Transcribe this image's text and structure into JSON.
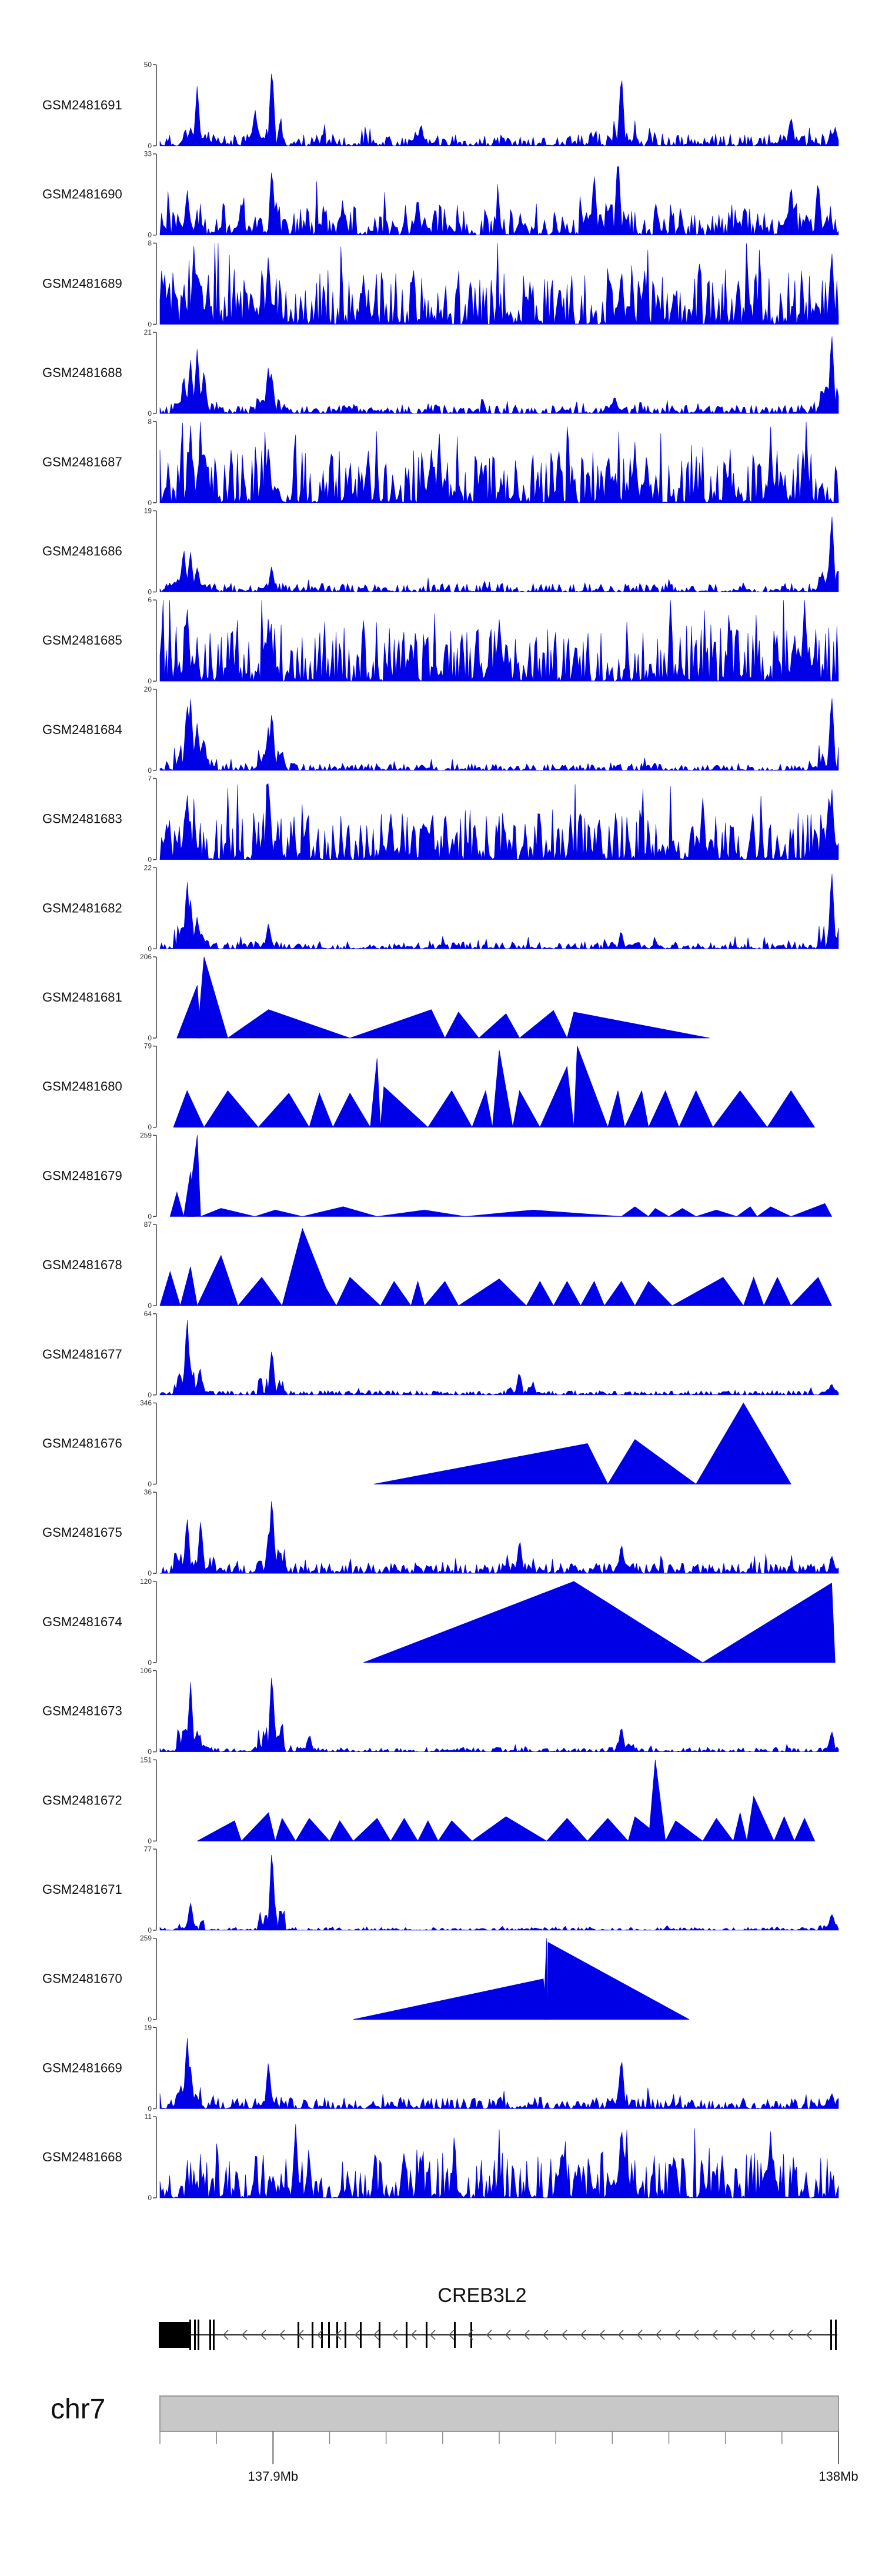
{
  "chart_data": {
    "type": "area",
    "title": "",
    "xlabel": "",
    "ylabel": "",
    "color": "#0000e6",
    "xlim": [
      137.88,
      138.0
    ],
    "tracks": [
      {
        "name": "GSM2481691",
        "ymax": "50",
        "kind": "dense",
        "seed": 11,
        "level": 0.08,
        "peaks": [
          [
            0.055,
            0.72
          ],
          [
            0.14,
            0.45
          ],
          [
            0.165,
            1.0
          ],
          [
            0.385,
            0.25
          ],
          [
            0.68,
            0.92
          ],
          [
            0.93,
            0.38
          ],
          [
            0.995,
            0.2
          ]
        ]
      },
      {
        "name": "GSM2481690",
        "ymax": "33",
        "kind": "dense",
        "seed": 23,
        "level": 0.22,
        "peaks": [
          [
            0.04,
            0.55
          ],
          [
            0.12,
            0.4
          ],
          [
            0.165,
            0.85
          ],
          [
            0.38,
            0.45
          ],
          [
            0.64,
            0.75
          ],
          [
            0.675,
            1.0
          ],
          [
            0.93,
            0.65
          ],
          [
            0.97,
            0.72
          ]
        ]
      },
      {
        "name": "GSM2481689",
        "ymax": "8",
        "kind": "dense",
        "seed": 37,
        "level": 0.38,
        "peaks": [
          [
            0.05,
            0.95
          ],
          [
            0.16,
            0.85
          ],
          [
            0.3,
            0.6
          ],
          [
            0.68,
            0.7
          ],
          [
            0.99,
            0.9
          ]
        ]
      },
      {
        "name": "GSM2481688",
        "ymax": "21",
        "kind": "dense",
        "seed": 41,
        "level": 0.06,
        "peaks": [
          [
            0.035,
            0.45
          ],
          [
            0.045,
            0.65
          ],
          [
            0.055,
            0.8
          ],
          [
            0.065,
            0.55
          ],
          [
            0.16,
            0.6
          ],
          [
            0.165,
            0.5
          ],
          [
            0.67,
            0.2
          ],
          [
            0.99,
            1.0
          ]
        ]
      },
      {
        "name": "GSM2481687",
        "ymax": "8",
        "kind": "dense",
        "seed": 53,
        "level": 0.36,
        "peaks": [
          [
            0.045,
            0.95
          ],
          [
            0.06,
            0.8
          ],
          [
            0.16,
            0.7
          ],
          [
            0.4,
            0.65
          ],
          [
            0.7,
            0.7
          ],
          [
            0.9,
            0.75
          ]
        ]
      },
      {
        "name": "GSM2481686",
        "ymax": "19",
        "kind": "dense",
        "seed": 61,
        "level": 0.06,
        "peaks": [
          [
            0.035,
            0.55
          ],
          [
            0.045,
            0.5
          ],
          [
            0.055,
            0.3
          ],
          [
            0.165,
            0.3
          ],
          [
            0.99,
            1.0
          ]
        ]
      },
      {
        "name": "GSM2481685",
        "ymax": "6",
        "kind": "dense",
        "seed": 71,
        "level": 0.38,
        "peaks": [
          [
            0.04,
            0.95
          ],
          [
            0.16,
            0.8
          ],
          [
            0.5,
            0.75
          ],
          [
            0.95,
            1.0
          ]
        ]
      },
      {
        "name": "GSM2481684",
        "ymax": "20",
        "kind": "dense",
        "seed": 83,
        "level": 0.05,
        "peaks": [
          [
            0.04,
            0.85
          ],
          [
            0.045,
            0.9
          ],
          [
            0.055,
            0.6
          ],
          [
            0.065,
            0.4
          ],
          [
            0.16,
            0.55
          ],
          [
            0.165,
            0.75
          ],
          [
            0.99,
            0.95
          ]
        ]
      },
      {
        "name": "GSM2481683",
        "ymax": "7",
        "kind": "dense",
        "seed": 97,
        "level": 0.32,
        "peaks": [
          [
            0.04,
            0.85
          ],
          [
            0.16,
            1.0
          ],
          [
            0.34,
            0.6
          ],
          [
            0.8,
            0.75
          ],
          [
            0.99,
            0.9
          ]
        ]
      },
      {
        "name": "GSM2481682",
        "ymax": "22",
        "kind": "dense",
        "seed": 101,
        "level": 0.05,
        "peaks": [
          [
            0.04,
            0.85
          ],
          [
            0.045,
            0.6
          ],
          [
            0.055,
            0.4
          ],
          [
            0.16,
            0.3
          ],
          [
            0.68,
            0.2
          ],
          [
            0.99,
            0.95
          ]
        ]
      },
      {
        "name": "GSM2481681",
        "ymax": "206",
        "kind": "triangles",
        "peaks": [
          [
            0.025,
            0.0,
            0.06,
            0.0
          ],
          [
            0.045,
            0.035,
            0.065,
            0.04
          ],
          [
            0.06,
            0.0,
            0.1,
            0.0
          ],
          [
            0.1,
            0.0,
            0.12,
            0.0
          ],
          [
            0.16,
            0.0,
            0.28,
            0.0
          ],
          [
            0.28,
            0.0,
            0.4,
            0.0
          ],
          [
            0.4,
            0.0,
            0.44,
            0.0
          ],
          [
            0.44,
            0.0,
            0.47,
            0.0
          ],
          [
            0.47,
            0.0,
            0.52,
            0.0
          ],
          [
            0.52,
            0.0,
            0.58,
            0.0
          ],
          [
            0.58,
            0.0,
            0.81,
            0.0
          ]
        ]
      },
      {
        "name": "GSM2481680",
        "ymax": "79",
        "kind": "triangles",
        "peaks": []
      },
      {
        "name": "GSM2481679",
        "ymax": "259",
        "kind": "triangles",
        "peaks": []
      },
      {
        "name": "GSM2481678",
        "ymax": "87",
        "kind": "triangles",
        "peaks": []
      },
      {
        "name": "GSM2481677",
        "ymax": "64",
        "kind": "dense",
        "seed": 131,
        "level": 0.03,
        "peaks": [
          [
            0.04,
            1.0
          ],
          [
            0.045,
            0.35
          ],
          [
            0.06,
            0.25
          ],
          [
            0.165,
            0.6
          ],
          [
            0.53,
            0.28
          ],
          [
            0.55,
            0.12
          ],
          [
            0.99,
            0.1
          ]
        ]
      },
      {
        "name": "GSM2481676",
        "ymax": "346",
        "kind": "triangles",
        "peaks": []
      },
      {
        "name": "GSM2481675",
        "ymax": "36",
        "kind": "dense",
        "seed": 149,
        "level": 0.07,
        "peaks": [
          [
            0.04,
            0.72
          ],
          [
            0.06,
            0.68
          ],
          [
            0.16,
            0.5
          ],
          [
            0.165,
            1.0
          ],
          [
            0.53,
            0.4
          ],
          [
            0.68,
            0.35
          ],
          [
            0.99,
            0.2
          ]
        ]
      },
      {
        "name": "GSM2481674",
        "ymax": "120",
        "kind": "triangles",
        "peaks": []
      },
      {
        "name": "GSM2481673",
        "ymax": "106",
        "kind": "dense",
        "seed": 167,
        "level": 0.03,
        "peaks": [
          [
            0.045,
            0.85
          ],
          [
            0.055,
            0.25
          ],
          [
            0.165,
            1.0
          ],
          [
            0.22,
            0.2
          ],
          [
            0.68,
            0.3
          ],
          [
            0.99,
            0.25
          ]
        ]
      },
      {
        "name": "GSM2481672",
        "ymax": "151",
        "kind": "triangles",
        "peaks": []
      },
      {
        "name": "GSM2481671",
        "ymax": "77",
        "kind": "dense",
        "seed": 181,
        "level": 0.02,
        "peaks": [
          [
            0.045,
            0.35
          ],
          [
            0.165,
            1.0
          ],
          [
            0.99,
            0.2
          ]
        ]
      },
      {
        "name": "GSM2481670",
        "ymax": "259",
        "kind": "triangles",
        "peaks": []
      },
      {
        "name": "GSM2481669",
        "ymax": "19",
        "kind": "dense",
        "seed": 193,
        "level": 0.08,
        "peaks": [
          [
            0.04,
            0.9
          ],
          [
            0.045,
            0.5
          ],
          [
            0.16,
            0.55
          ],
          [
            0.68,
            0.65
          ],
          [
            0.99,
            0.2
          ]
        ]
      },
      {
        "name": "GSM2481668",
        "ymax": "11",
        "kind": "dense",
        "seed": 211,
        "level": 0.32,
        "peaks": [
          [
            0.2,
            0.9
          ],
          [
            0.68,
            0.95
          ],
          [
            0.9,
            0.8
          ]
        ]
      }
    ],
    "gene": {
      "name": "CREB3L2",
      "strand": "-"
    },
    "chromosome": "chr7",
    "axis": {
      "ticks": [
        {
          "value": 137.9,
          "label": "137.9Mb"
        },
        {
          "value": 138.0,
          "label": "138Mb"
        }
      ]
    }
  }
}
